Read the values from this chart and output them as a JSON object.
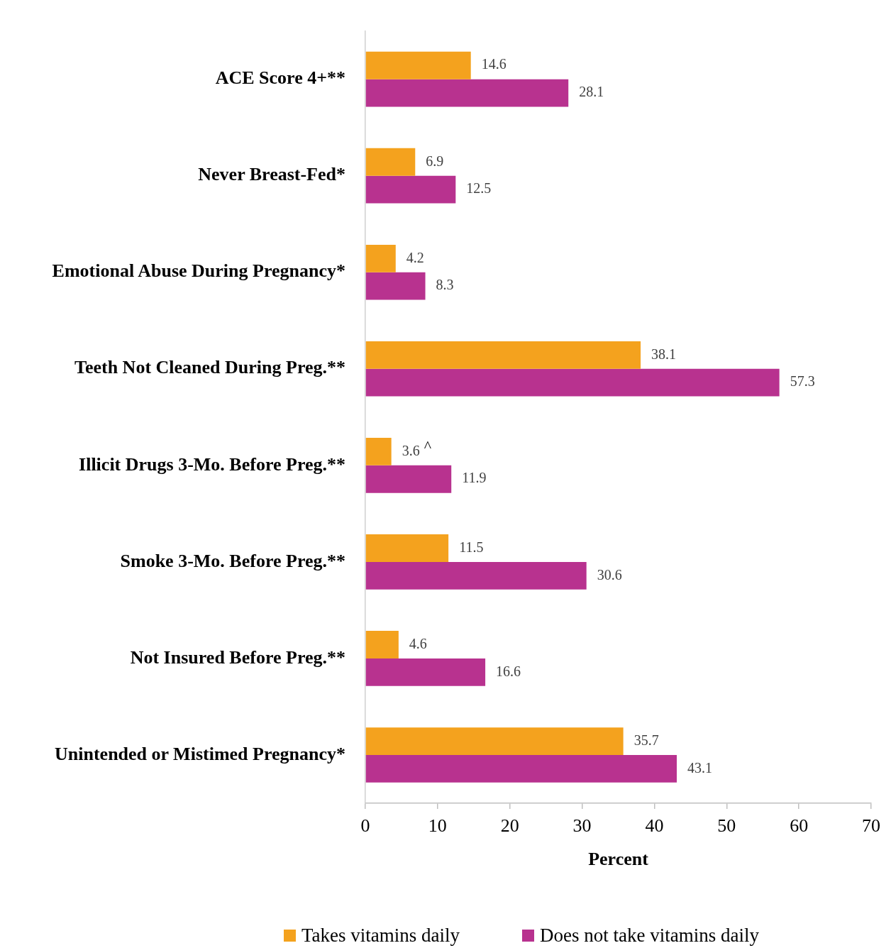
{
  "chart_data": {
    "type": "bar",
    "orientation": "horizontal",
    "categories": [
      "ACE Score 4+**",
      "Never Breast-Fed*",
      "Emotional Abuse During Pregnancy*",
      "Teeth Not Cleaned During Preg.**",
      "Illicit Drugs 3-Mo. Before Preg.**",
      "Smoke 3-Mo. Before Preg.**",
      "Not Insured Before Preg.**",
      "Unintended or Mistimed Pregnancy*"
    ],
    "series": [
      {
        "name": "Takes vitamins daily",
        "color": "#f4a21e",
        "values": [
          14.6,
          6.9,
          4.2,
          38.1,
          3.6,
          11.5,
          4.6,
          35.7
        ]
      },
      {
        "name": "Does not take vitamins daily",
        "color": "#b8328f",
        "values": [
          28.1,
          12.5,
          8.3,
          57.3,
          11.9,
          30.6,
          16.6,
          43.1
        ]
      }
    ],
    "xlabel": "Percent",
    "xlim": [
      0,
      70
    ],
    "xticks": [
      0,
      10,
      20,
      30,
      40,
      50,
      60,
      70
    ],
    "data_labels": true,
    "legend": "bottom",
    "annotations": [
      {
        "text": "^",
        "x": 3.6,
        "y": "Illicit Drugs 3-Mo. Before Preg.**"
      }
    ]
  }
}
